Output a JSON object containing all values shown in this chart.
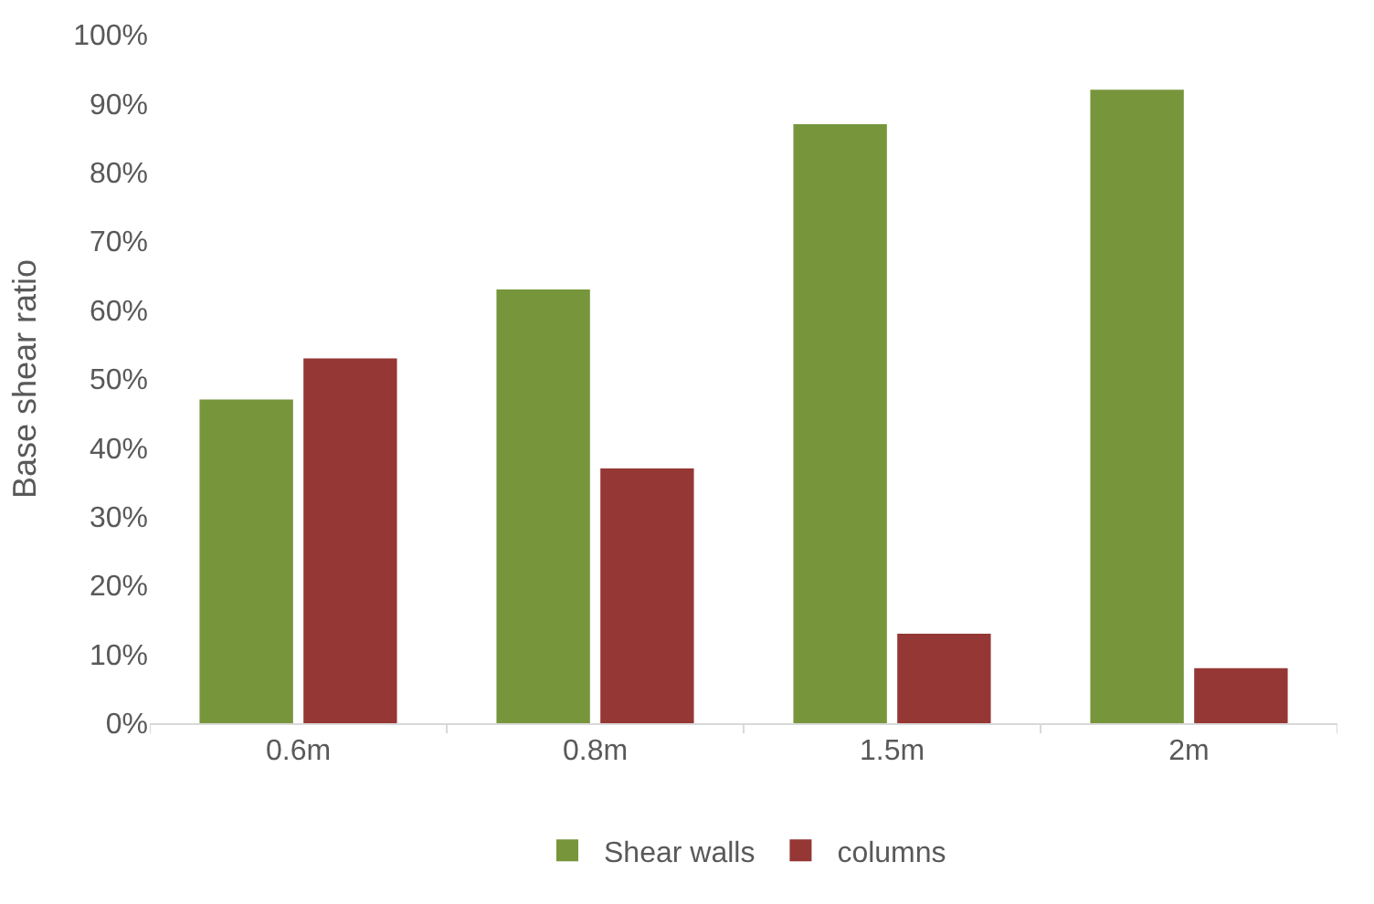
{
  "chart_data": {
    "type": "bar",
    "ylabel": "Base shear ratio",
    "categories": [
      "0.6m",
      "0.8m",
      "1.5m",
      "2m"
    ],
    "series": [
      {
        "name": "Shear walls",
        "color": "#77963c",
        "values": [
          47,
          63,
          87,
          92
        ]
      },
      {
        "name": "columns",
        "color": "#953735",
        "values": [
          53,
          37,
          13,
          8
        ]
      }
    ],
    "ylim": [
      0,
      100
    ],
    "yticks": [
      {
        "value": 0,
        "label": "0%"
      },
      {
        "value": 10,
        "label": "10%"
      },
      {
        "value": 20,
        "label": "20%"
      },
      {
        "value": 30,
        "label": "30%"
      },
      {
        "value": 40,
        "label": "40%"
      },
      {
        "value": 50,
        "label": "50%"
      },
      {
        "value": 60,
        "label": "60%"
      },
      {
        "value": 70,
        "label": "70%"
      },
      {
        "value": 80,
        "label": "80%"
      },
      {
        "value": 90,
        "label": "90%"
      },
      {
        "value": 100,
        "label": "100%"
      }
    ],
    "grid": false,
    "legend": "bottom"
  }
}
